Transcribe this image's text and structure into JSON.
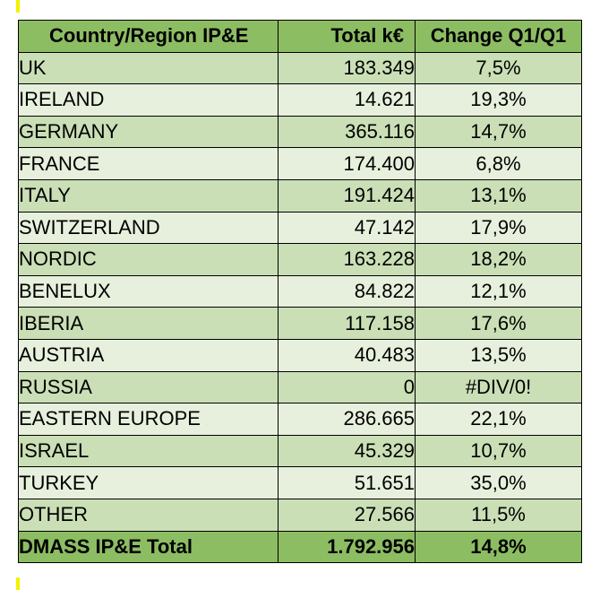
{
  "table": {
    "headers": {
      "country": "Country/Region IP&E",
      "total": "Total k€",
      "change": "Change Q1/Q1"
    },
    "rows": [
      {
        "country": "UK",
        "total": "183.349",
        "change": "7,5%"
      },
      {
        "country": "IRELAND",
        "total": "14.621",
        "change": "19,3%"
      },
      {
        "country": "GERMANY",
        "total": "365.116",
        "change": "14,7%"
      },
      {
        "country": "FRANCE",
        "total": "174.400",
        "change": "6,8%"
      },
      {
        "country": "ITALY",
        "total": "191.424",
        "change": "13,1%"
      },
      {
        "country": "SWITZERLAND",
        "total": "47.142",
        "change": "17,9%"
      },
      {
        "country": "NORDIC",
        "total": "163.228",
        "change": "18,2%"
      },
      {
        "country": "BENELUX",
        "total": "84.822",
        "change": "12,1%"
      },
      {
        "country": "IBERIA",
        "total": "117.158",
        "change": "17,6%"
      },
      {
        "country": "AUSTRIA",
        "total": "40.483",
        "change": "13,5%"
      },
      {
        "country": "RUSSIA",
        "total": "0",
        "change": "#DIV/0!"
      },
      {
        "country": "EASTERN EUROPE",
        "total": "286.665",
        "change": "22,1%"
      },
      {
        "country": "ISRAEL",
        "total": "45.329",
        "change": "10,7%"
      },
      {
        "country": "TURKEY",
        "total": "51.651",
        "change": "35,0%"
      },
      {
        "country": "OTHER",
        "total": "27.566",
        "change": "11,5%"
      }
    ],
    "total_row": {
      "country": "DMASS IP&E Total",
      "total": "1.792.956",
      "change": "14,8%"
    }
  },
  "colors": {
    "header_total_bg": "#8dbd63",
    "row_dark_bg": "#cadfb6",
    "row_light_bg": "#e7f0dd",
    "accent_mark": "#f2f200"
  }
}
